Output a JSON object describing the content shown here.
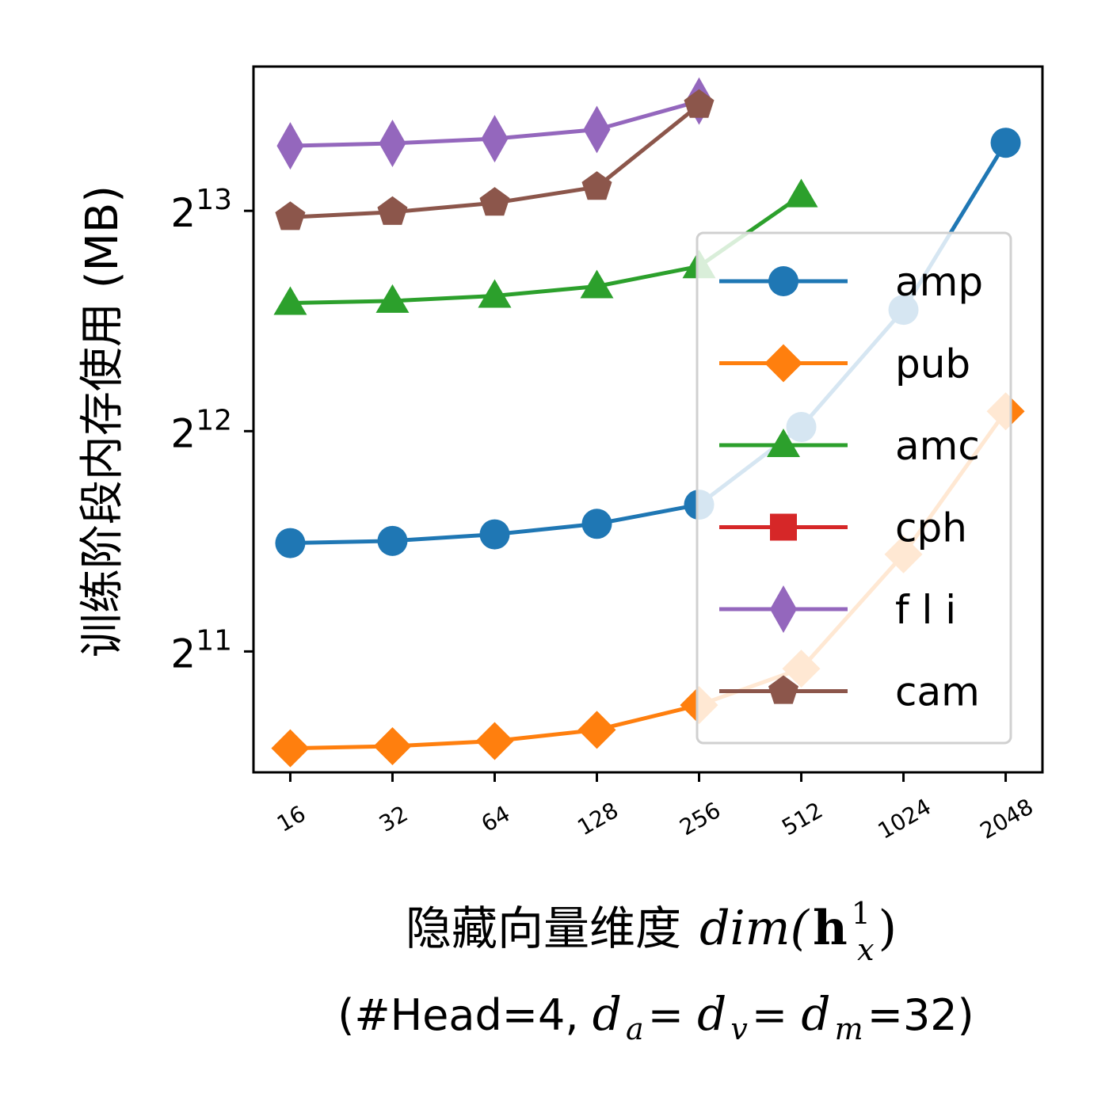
{
  "chart_data": {
    "type": "line",
    "x_scale": "log2",
    "y_scale": "log2",
    "categories": [
      "16",
      "32",
      "64",
      "128",
      "256",
      "512",
      "1024",
      "2048"
    ],
    "x": [
      16,
      32,
      64,
      128,
      256,
      512,
      1024,
      2048
    ],
    "ylim": [
      1400,
      12900
    ],
    "y_ticks": [
      {
        "base": "2",
        "exp": "11",
        "value": 2048
      },
      {
        "base": "2",
        "exp": "12",
        "value": 4096
      },
      {
        "base": "2",
        "exp": "13",
        "value": 8192
      }
    ],
    "ylabel": "训练阶段内存使用 (MB)",
    "xlabel": {
      "chinese": "隐藏向量维度",
      "math_main": "dim(",
      "math_bold": "h",
      "math_sup": "1",
      "math_sub": "x",
      "math_close": ")"
    },
    "xlabel_line2": {
      "open": "(#Head=4, ",
      "d1": "d",
      "s1": "a",
      "eq1": " = ",
      "d2": "d",
      "s2": "v",
      "eq2": " = ",
      "d3": "d",
      "s3": "m",
      "tail": "=32)"
    },
    "grid": false,
    "legend_position": "right",
    "series": [
      {
        "name": "amp",
        "color": "#1f77b4",
        "marker": "circle",
        "values": [
          2880,
          2900,
          2960,
          3060,
          3250,
          4150,
          6000,
          10150
        ]
      },
      {
        "name": "pub",
        "color": "#ff7f0e",
        "marker": "diamond",
        "values": [
          1510,
          1520,
          1545,
          1600,
          1730,
          1940,
          2780,
          4360
        ]
      },
      {
        "name": "amc",
        "color": "#2ca02c",
        "marker": "triangle",
        "values": [
          6130,
          6170,
          6270,
          6460,
          6880,
          8600,
          null,
          null
        ]
      },
      {
        "name": "cph",
        "color": "#d62728",
        "marker": "square",
        "values": [
          null,
          null,
          null,
          null,
          null,
          null,
          null,
          null
        ]
      },
      {
        "name": "f l i",
        "color": "#9467bd",
        "marker": "thin_diamond",
        "values": [
          10050,
          10130,
          10280,
          10580,
          11570,
          null,
          null,
          null
        ]
      },
      {
        "name": "cam",
        "color": "#8c564b",
        "marker": "pentagon",
        "values": [
          8030,
          8160,
          8400,
          8830,
          11430,
          null,
          null,
          null
        ]
      }
    ]
  }
}
